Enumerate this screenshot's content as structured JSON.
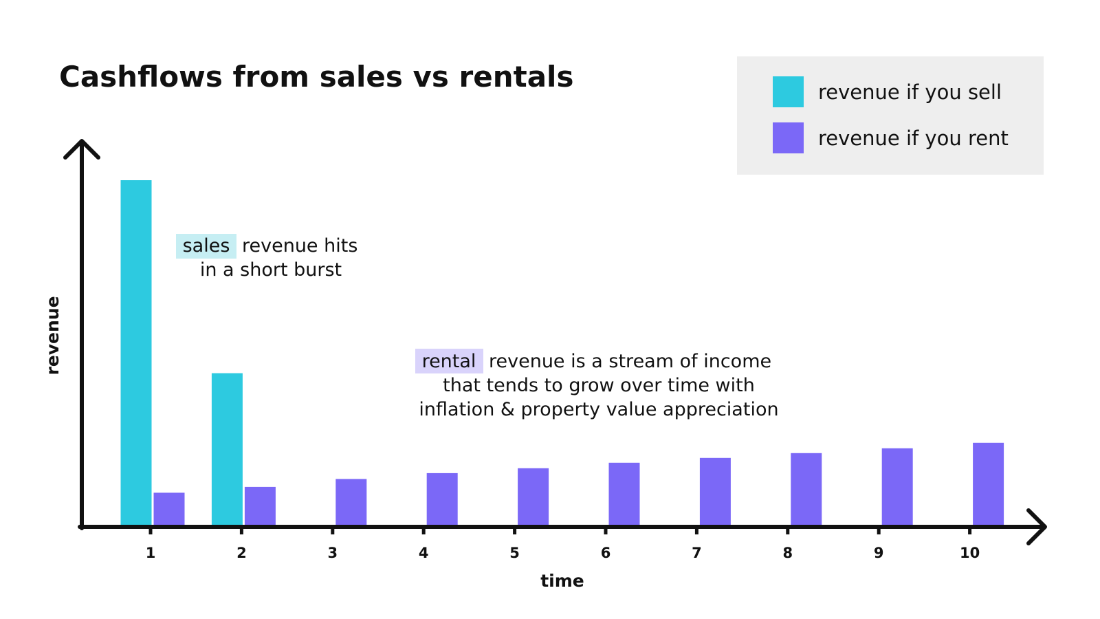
{
  "colors": {
    "sell": "#2dcae0",
    "rent": "#7b68f7",
    "sell_highlight": "#c6eef3",
    "rent_highlight": "#d9d3fb",
    "legend_bg": "#eeeeee",
    "axis": "#111111"
  },
  "chart_data": {
    "type": "bar",
    "title": "Cashflows from sales vs rentals",
    "xlabel": "time",
    "ylabel": "revenue",
    "categories": [
      "1",
      "2",
      "3",
      "4",
      "5",
      "6",
      "7",
      "8",
      "9",
      "10"
    ],
    "series": [
      {
        "name": "revenue if you sell",
        "values": [
          100,
          44,
          null,
          null,
          null,
          null,
          null,
          null,
          null,
          null
        ]
      },
      {
        "name": "revenue if you rent",
        "values": [
          9.3,
          11,
          13.3,
          15,
          16.4,
          18,
          19.4,
          20.8,
          22.2,
          23.8
        ]
      }
    ],
    "ylim": [
      0,
      110
    ],
    "grid": false,
    "legend": "top-right",
    "annotations": [
      {
        "highlight": "sales",
        "lines": [
          "revenue hits",
          "in a short burst"
        ]
      },
      {
        "highlight": "rental",
        "lines": [
          "revenue is a stream of income",
          "that tends to grow over time with",
          "inflation & property value appreciation"
        ]
      }
    ]
  }
}
